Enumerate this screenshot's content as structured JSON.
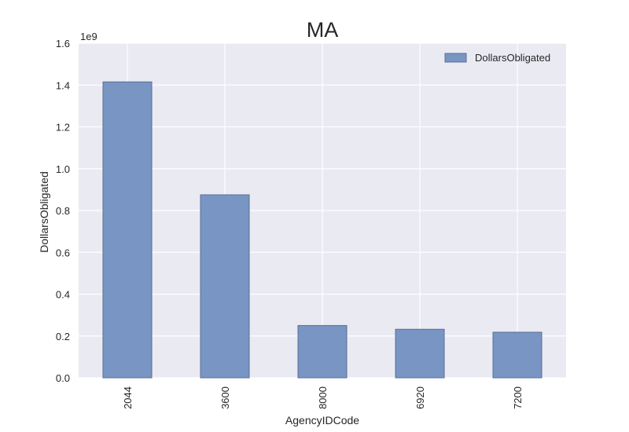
{
  "chart_data": {
    "type": "bar",
    "title": "MA",
    "xlabel": "AgencyIDCode",
    "ylabel": "DollarsObligated",
    "offset_label": "1e9",
    "categories": [
      "2044",
      "3600",
      "8000",
      "6920",
      "7200"
    ],
    "series": [
      {
        "name": "DollarsObligated",
        "values": [
          1.415,
          0.875,
          0.25,
          0.232,
          0.218
        ]
      }
    ],
    "ylim": [
      0,
      1.6
    ],
    "yticks": [
      "0.0",
      "0.2",
      "0.4",
      "0.6",
      "0.8",
      "1.0",
      "1.2",
      "1.4",
      "1.6"
    ],
    "grid": true,
    "legend": "top-right",
    "colors": {
      "bar": "#7895c4",
      "bar_edge": "#5a6e96",
      "plot_bg": "#eaeaf2",
      "grid": "#ffffff"
    }
  }
}
